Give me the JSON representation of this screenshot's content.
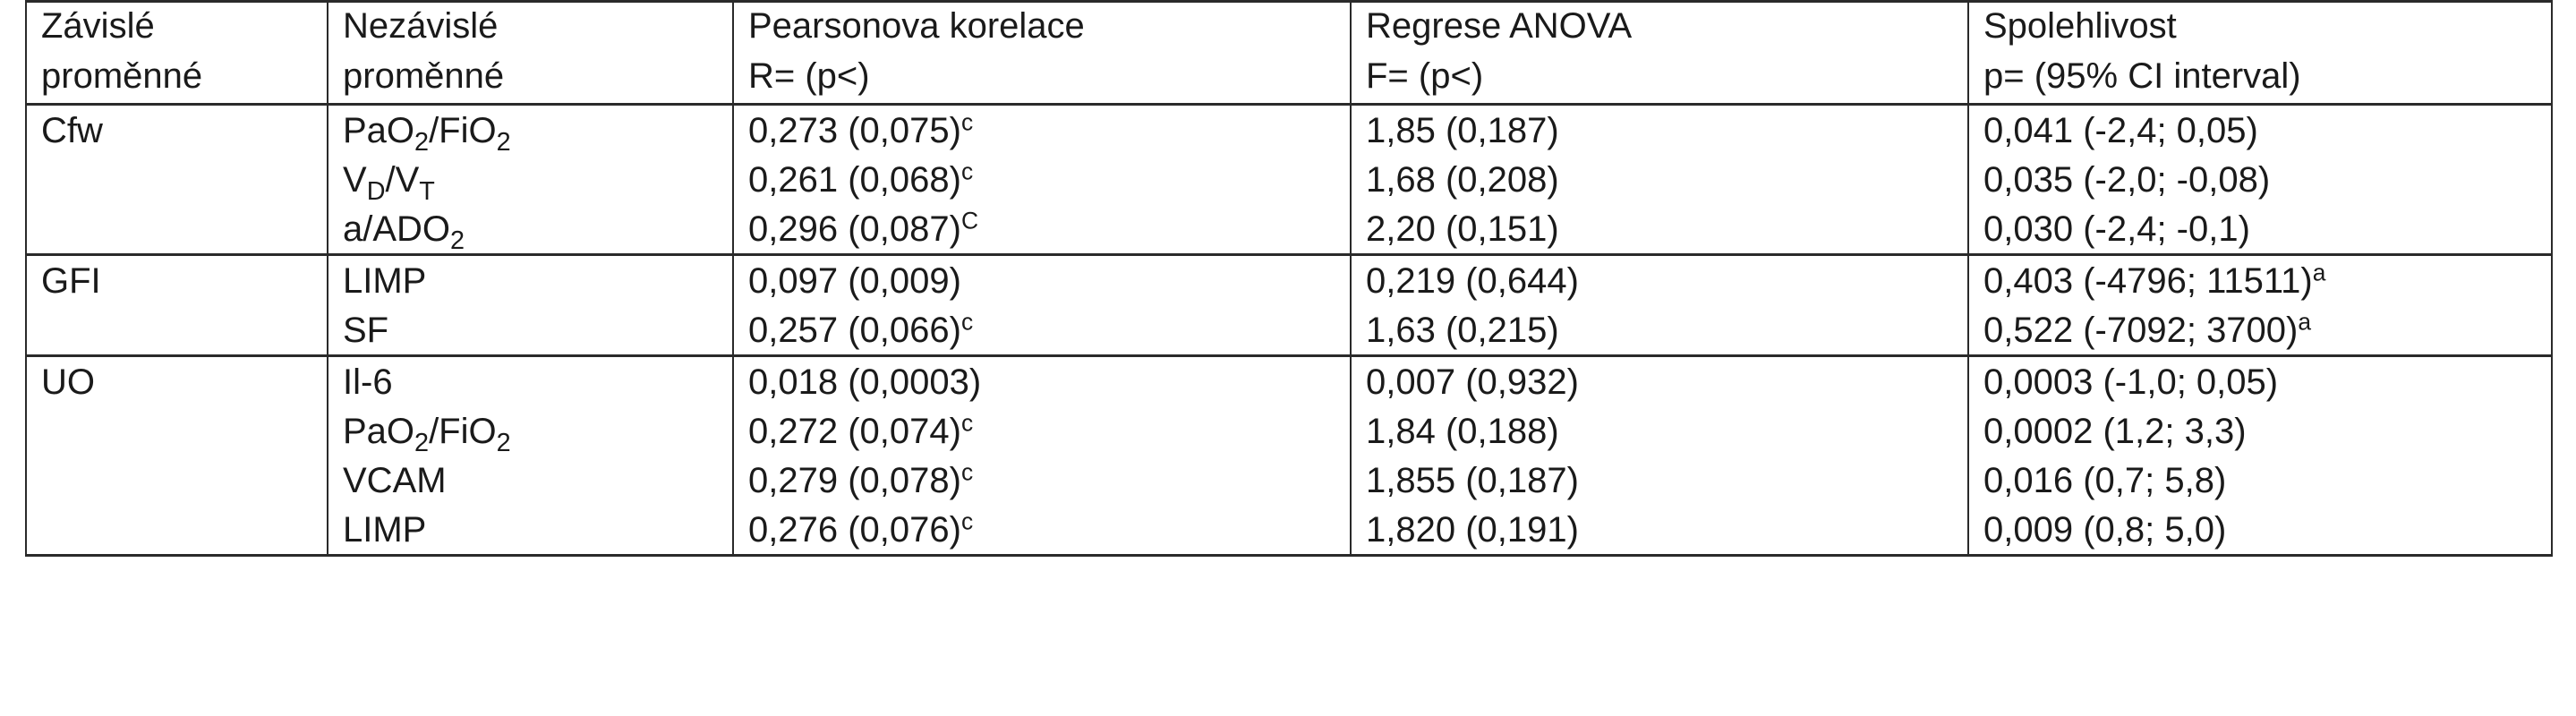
{
  "header": {
    "dependent": [
      "Závislé",
      "proměnné"
    ],
    "independent": [
      "Nezávislé",
      "proměnné"
    ],
    "pearson": [
      "Pearsonova korelace",
      "R= (p<)"
    ],
    "anova": [
      "Regrese ANOVA",
      "F= (p<)"
    ],
    "reliability": [
      "Spolehlivost",
      "p= (95% CI interval)"
    ]
  },
  "groups": [
    {
      "dependent": "Cfw",
      "rows": [
        {
          "var": "PaO",
          "var_sub": "2",
          "var_mid": "/FiO",
          "var_sub2": "2",
          "pearson": "0,273 (0,075)",
          "pearson_sup": "c",
          "anova": "1,85 (0,187)",
          "reliability": "0,041 (-2,4; 0,05)",
          "reliability_sup": ""
        },
        {
          "var": "V",
          "var_sub": "D",
          "var_mid": "/V",
          "var_sub2": "T",
          "pearson": "0,261 (0,068)",
          "pearson_sup": "c",
          "anova": "1,68 (0,208)",
          "reliability": "0,035 (-2,0; -0,08)",
          "reliability_sup": ""
        },
        {
          "var": "a/ADO",
          "var_sub": "2",
          "var_mid": "",
          "var_sub2": "",
          "pearson": "0,296 (0,087)",
          "pearson_sup": "C",
          "anova": "2,20 (0,151)",
          "reliability": "0,030 (-2,4; -0,1)",
          "reliability_sup": ""
        }
      ]
    },
    {
      "dependent": "GFI",
      "rows": [
        {
          "var": "LIMP",
          "var_sub": "",
          "var_mid": "",
          "var_sub2": "",
          "pearson": "0,097 (0,009)",
          "pearson_sup": "",
          "anova": "0,219 (0,644)",
          "reliability": "0,403 (-4796; 11511)",
          "reliability_sup": "a"
        },
        {
          "var": "SF",
          "var_sub": "",
          "var_mid": "",
          "var_sub2": "",
          "pearson": "0,257 (0,066)",
          "pearson_sup": "c",
          "anova": "1,63 (0,215)",
          "reliability": "0,522 (-7092; 3700)",
          "reliability_sup": "a"
        }
      ]
    },
    {
      "dependent": "UO",
      "rows": [
        {
          "var": "Il-6",
          "var_sub": "",
          "var_mid": "",
          "var_sub2": "",
          "pearson": "0,018 (0,0003)",
          "pearson_sup": "",
          "anova": "0,007 (0,932)",
          "reliability": "0,0003 (-1,0; 0,05)",
          "reliability_sup": ""
        },
        {
          "var": "PaO",
          "var_sub": "2",
          "var_mid": "/FiO",
          "var_sub2": "2",
          "pearson": "0,272 (0,074)",
          "pearson_sup": "c",
          "anova": "1,84 (0,188)",
          "reliability": "0,0002 (1,2; 3,3)",
          "reliability_sup": ""
        },
        {
          "var": "VCAM",
          "var_sub": "",
          "var_mid": "",
          "var_sub2": "",
          "pearson": "0,279 (0,078)",
          "pearson_sup": "c",
          "anova": "1,855 (0,187)",
          "reliability": "0,016 (0,7; 5,8)",
          "reliability_sup": ""
        },
        {
          "var": "LIMP",
          "var_sub": "",
          "var_mid": "",
          "var_sub2": "",
          "pearson": "0,276 (0,076)",
          "pearson_sup": "c",
          "anova": "1,820 (0,191)",
          "reliability": "0,009 (0,8; 5,0)",
          "reliability_sup": ""
        }
      ]
    }
  ]
}
